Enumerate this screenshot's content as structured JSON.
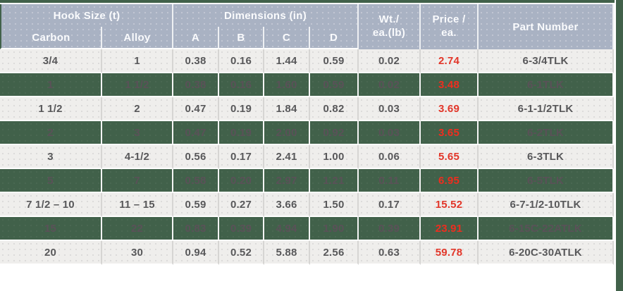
{
  "colors": {
    "accent_green": "#41614a",
    "header_blue_gray": "#a9b2c3",
    "light_row_bg": "#efeeec",
    "row_text_gray": "#58585a",
    "price_red": "#e23629"
  },
  "table": {
    "header": {
      "group_hook": "Hook Size (t)",
      "group_dimensions": "Dimensions (in)",
      "col_carbon": "Carbon",
      "col_alloy": "Alloy",
      "col_a": "A",
      "col_b": "B",
      "col_c": "C",
      "col_d": "D",
      "col_weight_line1": "Wt./",
      "col_weight_line2": "ea.(lb)",
      "col_price_line1": "Price /",
      "col_price_line2": "ea.",
      "col_part": "Part Number"
    },
    "rows": [
      {
        "carbon": "3/4",
        "alloy": "1",
        "a": "0.38",
        "b": "0.16",
        "c": "1.44",
        "d": "0.59",
        "wt": "0.02",
        "price": "2.74",
        "part": "6-3/4TLK"
      },
      {
        "carbon": "1",
        "alloy": "1 1/2",
        "a": "0.38",
        "b": "0.16",
        "c": "1.60",
        "d": "0.59",
        "wt": "0.02",
        "price": "3.48",
        "part": "6-1TLK"
      },
      {
        "carbon": "1 1/2",
        "alloy": "2",
        "a": "0.47",
        "b": "0.19",
        "c": "1.84",
        "d": "0.82",
        "wt": "0.03",
        "price": "3.69",
        "part": "6-1-1/2TLK"
      },
      {
        "carbon": "2",
        "alloy": "3",
        "a": "0.47",
        "b": "0.19",
        "c": "2.00",
        "d": "0.92",
        "wt": "0.03",
        "price": "3.65",
        "part": "6-2TLK"
      },
      {
        "carbon": "3",
        "alloy": "4-1/2",
        "a": "0.56",
        "b": "0.17",
        "c": "2.41",
        "d": "1.00",
        "wt": "0.06",
        "price": "5.65",
        "part": "6-3TLK"
      },
      {
        "carbon": "5",
        "alloy": "7",
        "a": "0.58",
        "b": "0.20",
        "c": "2.97",
        "d": "1.21",
        "wt": "0.11",
        "price": "6.95",
        "part": "6-5TLK"
      },
      {
        "carbon": "7 1/2 – 10",
        "alloy": "11 – 15",
        "a": "0.59",
        "b": "0.27",
        "c": "3.66",
        "d": "1.50",
        "wt": "0.17",
        "price": "15.52",
        "part": "6-7-1/2-10TLK"
      },
      {
        "carbon": "15",
        "alloy": "22",
        "a": "0.83",
        "b": "0.39",
        "c": "4.94",
        "d": "1.90",
        "wt": "0.39",
        "price": "23.91",
        "part": "6-15C-22ATLK"
      },
      {
        "carbon": "20",
        "alloy": "30",
        "a": "0.94",
        "b": "0.52",
        "c": "5.88",
        "d": "2.56",
        "wt": "0.63",
        "price": "59.78",
        "part": "6-20C-30ATLK"
      }
    ]
  }
}
